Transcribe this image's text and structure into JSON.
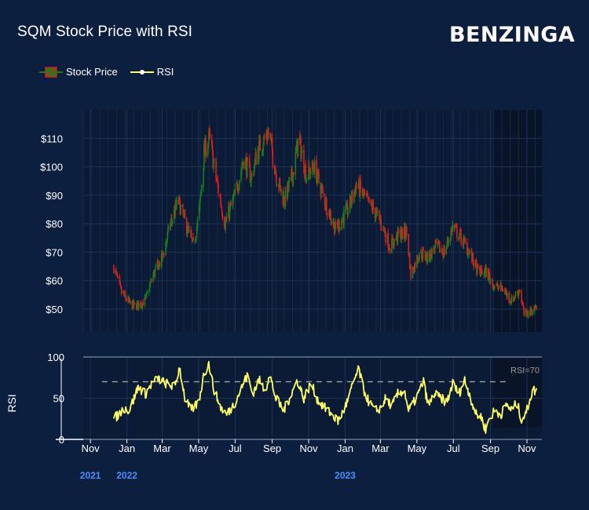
{
  "header": {
    "title": "SQM Stock Price with RSI",
    "logo": "BENZINGA"
  },
  "legend": {
    "items": [
      {
        "label": "Stock Price",
        "icon": "candlestick-icon",
        "colors": [
          "#1a7f1a",
          "#e01b1b"
        ]
      },
      {
        "label": "RSI",
        "icon": "line-marker-icon",
        "color": "#ffff66"
      }
    ]
  },
  "colors": {
    "background": "#0d1f3f",
    "plot_background": "#0b1b36",
    "plot_background_recent": "#0a1428",
    "up": "#1a7f1a",
    "down": "#e01b1b",
    "rsi": "#ffff66",
    "rsi_threshold": "#9a9a9a",
    "year_label": "#4a90ff"
  },
  "chart_data": [
    {
      "type": "candlestick",
      "series": [
        {
          "name": "Stock Price"
        }
      ],
      "x_range": [
        "2021-10-20",
        "2023-11-26"
      ],
      "ylim": [
        42,
        120
      ],
      "y_ticks": [
        50,
        60,
        70,
        80,
        90,
        100,
        110
      ],
      "y_tick_labels": [
        "$50",
        "$60",
        "$70",
        "$80",
        "$90",
        "$100",
        "$110"
      ],
      "grid": true,
      "data_start": "2021-12-10",
      "data_end": "2023-11-17",
      "close_anchors": [
        [
          "2021-12-10",
          65
        ],
        [
          "2021-12-22",
          56
        ],
        [
          "2022-01-05",
          52
        ],
        [
          "2022-01-14",
          51
        ],
        [
          "2022-02-01",
          53
        ],
        [
          "2022-02-14",
          62
        ],
        [
          "2022-03-01",
          68
        ],
        [
          "2022-03-15",
          80
        ],
        [
          "2022-03-28",
          88
        ],
        [
          "2022-04-06",
          82
        ],
        [
          "2022-04-22",
          72
        ],
        [
          "2022-05-02",
          84
        ],
        [
          "2022-05-10",
          105
        ],
        [
          "2022-05-19",
          110
        ],
        [
          "2022-05-31",
          95
        ],
        [
          "2022-06-14",
          80
        ],
        [
          "2022-07-01",
          90
        ],
        [
          "2022-07-15",
          103
        ],
        [
          "2022-07-28",
          96
        ],
        [
          "2022-08-08",
          106
        ],
        [
          "2022-08-26",
          112
        ],
        [
          "2022-09-09",
          96
        ],
        [
          "2022-09-21",
          88
        ],
        [
          "2022-10-06",
          98
        ],
        [
          "2022-10-15",
          110
        ],
        [
          "2022-10-28",
          97
        ],
        [
          "2022-11-10",
          100
        ],
        [
          "2022-11-28",
          88
        ],
        [
          "2022-12-16",
          78
        ],
        [
          "2023-01-06",
          85
        ],
        [
          "2023-01-20",
          94
        ],
        [
          "2023-02-06",
          88
        ],
        [
          "2023-02-17",
          85
        ],
        [
          "2023-03-03",
          80
        ],
        [
          "2023-03-17",
          72
        ],
        [
          "2023-03-31",
          76
        ],
        [
          "2023-04-14",
          77
        ],
        [
          "2023-04-21",
          62
        ],
        [
          "2023-05-05",
          70
        ],
        [
          "2023-05-19",
          68
        ],
        [
          "2023-06-02",
          72
        ],
        [
          "2023-06-16",
          70
        ],
        [
          "2023-06-30",
          79
        ],
        [
          "2023-07-14",
          75
        ],
        [
          "2023-07-28",
          70
        ],
        [
          "2023-08-11",
          63
        ],
        [
          "2023-08-25",
          63
        ],
        [
          "2023-09-08",
          58
        ],
        [
          "2023-09-22",
          57
        ],
        [
          "2023-10-06",
          53
        ],
        [
          "2023-10-20",
          57
        ],
        [
          "2023-10-27",
          48
        ],
        [
          "2023-11-06",
          49
        ],
        [
          "2023-11-17",
          51
        ]
      ]
    },
    {
      "type": "line",
      "series": [
        {
          "name": "RSI"
        }
      ],
      "ylabel": "RSI",
      "ylim": [
        0,
        100
      ],
      "y_ticks": [
        0,
        50,
        100
      ],
      "threshold": {
        "value": 70,
        "label": "RSI=70"
      },
      "anchors": [
        [
          "2021-12-10",
          25
        ],
        [
          "2021-12-18",
          30
        ],
        [
          "2021-12-28",
          38
        ],
        [
          "2022-01-05",
          35
        ],
        [
          "2022-01-12",
          48
        ],
        [
          "2022-01-20",
          64
        ],
        [
          "2022-02-01",
          55
        ],
        [
          "2022-02-10",
          66
        ],
        [
          "2022-02-22",
          74
        ],
        [
          "2022-03-01",
          70
        ],
        [
          "2022-03-14",
          66
        ],
        [
          "2022-03-22",
          64
        ],
        [
          "2022-03-30",
          88
        ],
        [
          "2022-04-08",
          50
        ],
        [
          "2022-04-18",
          35
        ],
        [
          "2022-05-01",
          45
        ],
        [
          "2022-05-10",
          80
        ],
        [
          "2022-05-18",
          92
        ],
        [
          "2022-05-26",
          62
        ],
        [
          "2022-06-06",
          40
        ],
        [
          "2022-06-17",
          30
        ],
        [
          "2022-07-01",
          45
        ],
        [
          "2022-07-15",
          68
        ],
        [
          "2022-07-22",
          78
        ],
        [
          "2022-07-30",
          55
        ],
        [
          "2022-08-10",
          72
        ],
        [
          "2022-08-20",
          60
        ],
        [
          "2022-08-28",
          78
        ],
        [
          "2022-09-07",
          50
        ],
        [
          "2022-09-20",
          35
        ],
        [
          "2022-10-03",
          55
        ],
        [
          "2022-10-13",
          72
        ],
        [
          "2022-10-24",
          50
        ],
        [
          "2022-11-05",
          68
        ],
        [
          "2022-11-16",
          48
        ],
        [
          "2022-11-28",
          38
        ],
        [
          "2022-12-10",
          30
        ],
        [
          "2022-12-20",
          22
        ],
        [
          "2022-12-28",
          33
        ],
        [
          "2023-01-06",
          48
        ],
        [
          "2023-01-16",
          72
        ],
        [
          "2023-01-24",
          85
        ],
        [
          "2023-02-01",
          60
        ],
        [
          "2023-02-10",
          45
        ],
        [
          "2023-02-20",
          35
        ],
        [
          "2023-03-01",
          38
        ],
        [
          "2023-03-10",
          50
        ],
        [
          "2023-03-20",
          40
        ],
        [
          "2023-03-30",
          55
        ],
        [
          "2023-04-10",
          60
        ],
        [
          "2023-04-17",
          35
        ],
        [
          "2023-04-26",
          45
        ],
        [
          "2023-05-05",
          58
        ],
        [
          "2023-05-12",
          70
        ],
        [
          "2023-05-20",
          40
        ],
        [
          "2023-05-30",
          55
        ],
        [
          "2023-06-10",
          50
        ],
        [
          "2023-06-20",
          45
        ],
        [
          "2023-06-30",
          68
        ],
        [
          "2023-07-10",
          55
        ],
        [
          "2023-07-20",
          72
        ],
        [
          "2023-07-30",
          50
        ],
        [
          "2023-08-08",
          30
        ],
        [
          "2023-08-16",
          28
        ],
        [
          "2023-08-24",
          12
        ],
        [
          "2023-08-30",
          25
        ],
        [
          "2023-09-08",
          35
        ],
        [
          "2023-09-18",
          30
        ],
        [
          "2023-09-28",
          42
        ],
        [
          "2023-10-07",
          35
        ],
        [
          "2023-10-15",
          45
        ],
        [
          "2023-10-23",
          25
        ],
        [
          "2023-10-30",
          30
        ],
        [
          "2023-11-06",
          50
        ],
        [
          "2023-11-12",
          60
        ],
        [
          "2023-11-17",
          58
        ]
      ]
    }
  ],
  "x_axis": {
    "ticks": [
      {
        "label": "Nov",
        "date": "2021-11-01"
      },
      {
        "label": "Jan",
        "date": "2022-01-01"
      },
      {
        "label": "Mar",
        "date": "2022-03-01"
      },
      {
        "label": "May",
        "date": "2022-05-01"
      },
      {
        "label": "Jul",
        "date": "2022-07-01"
      },
      {
        "label": "Sep",
        "date": "2022-09-01"
      },
      {
        "label": "Nov",
        "date": "2022-11-01"
      },
      {
        "label": "Jan",
        "date": "2023-01-01"
      },
      {
        "label": "Mar",
        "date": "2023-03-01"
      },
      {
        "label": "May",
        "date": "2023-05-01"
      },
      {
        "label": "Jul",
        "date": "2023-07-01"
      },
      {
        "label": "Sep",
        "date": "2023-09-01"
      },
      {
        "label": "Nov",
        "date": "2023-11-01"
      }
    ],
    "year_labels": [
      {
        "label": "2021",
        "date": "2021-11-01"
      },
      {
        "label": "2022",
        "date": "2022-01-01"
      },
      {
        "label": "2023",
        "date": "2023-01-01"
      }
    ]
  }
}
